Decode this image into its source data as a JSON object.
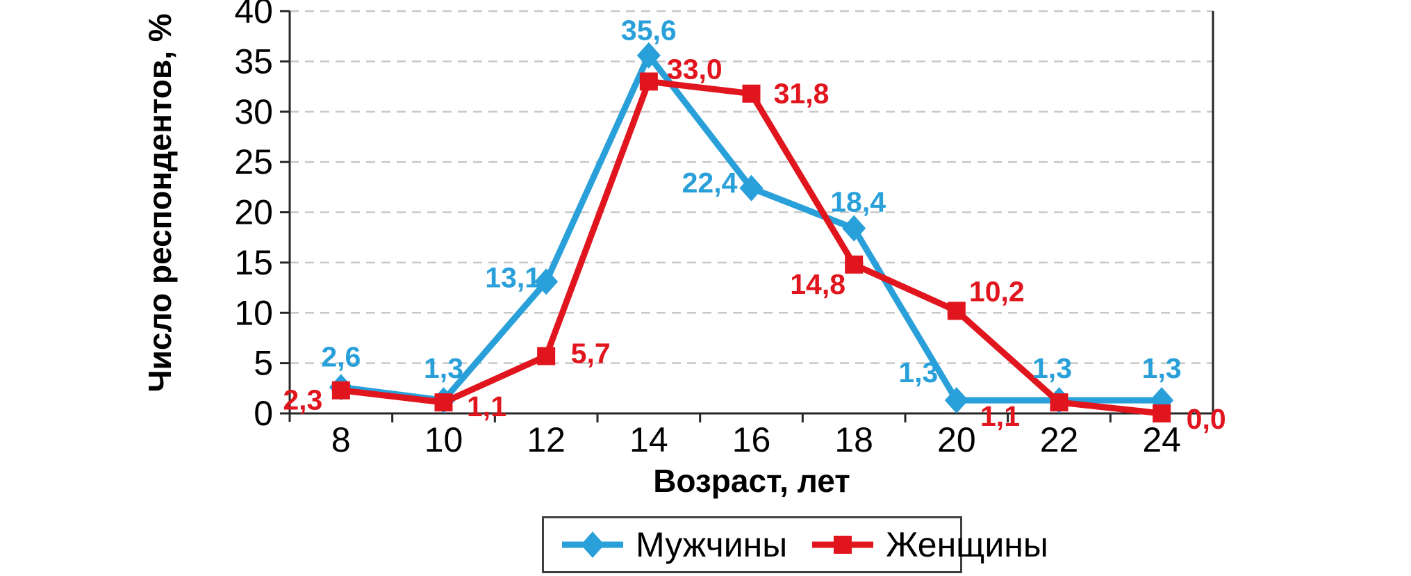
{
  "chart_data": {
    "type": "line",
    "title": "",
    "xlabel": "Возраст, лет",
    "ylabel": "Число респондентов, %",
    "x": [
      8,
      10,
      12,
      14,
      16,
      18,
      20,
      22,
      24
    ],
    "xlim_padding": "half-category",
    "ylim": [
      0,
      40
    ],
    "ytick_step": 5,
    "grid": "horizontal-dashed",
    "decimal_separator": ",",
    "legend_position": "bottom-center",
    "series": [
      {
        "name": "Мужчины",
        "color": "#29A0D9",
        "marker": "diamond",
        "values": [
          2.6,
          1.3,
          13.1,
          35.6,
          22.4,
          18.4,
          1.3,
          1.3,
          1.3
        ],
        "point_labels": [
          "2,6",
          "1,3",
          "13,1",
          "35,6",
          "22,4",
          "18,4",
          "1,3",
          "1,3",
          "1,3"
        ],
        "label_offsets": [
          [
            0,
            -44
          ],
          [
            0,
            -46
          ],
          [
            -48,
            -6
          ],
          [
            0,
            -36
          ],
          [
            -60,
            -8
          ],
          [
            6,
            -38
          ],
          [
            -55,
            -40
          ],
          [
            -10,
            -46
          ],
          [
            0,
            -46
          ]
        ]
      },
      {
        "name": "Женщины",
        "color": "#E1151D",
        "marker": "square",
        "values": [
          2.3,
          1.1,
          5.7,
          33.0,
          31.8,
          14.8,
          10.2,
          1.1,
          0.0
        ],
        "point_labels": [
          "2,3",
          "1,1",
          "5,7",
          "33,0",
          "31,8",
          "14,8",
          "10,2",
          "1,1",
          "0,0"
        ],
        "label_offsets": [
          [
            -55,
            14
          ],
          [
            62,
            6
          ],
          [
            64,
            -4
          ],
          [
            66,
            -18
          ],
          [
            72,
            0
          ],
          [
            -52,
            28
          ],
          [
            58,
            -28
          ],
          [
            -85,
            20
          ],
          [
            64,
            8
          ]
        ]
      }
    ]
  },
  "legend": {
    "items": [
      {
        "label": "Мужчины",
        "color": "#29A0D9",
        "marker": "diamond"
      },
      {
        "label": "Женщины",
        "color": "#E1151D",
        "marker": "square"
      }
    ]
  },
  "colors": {
    "grid": "#C8C8C8",
    "axis": "#262626",
    "tick_text": "#000000"
  }
}
